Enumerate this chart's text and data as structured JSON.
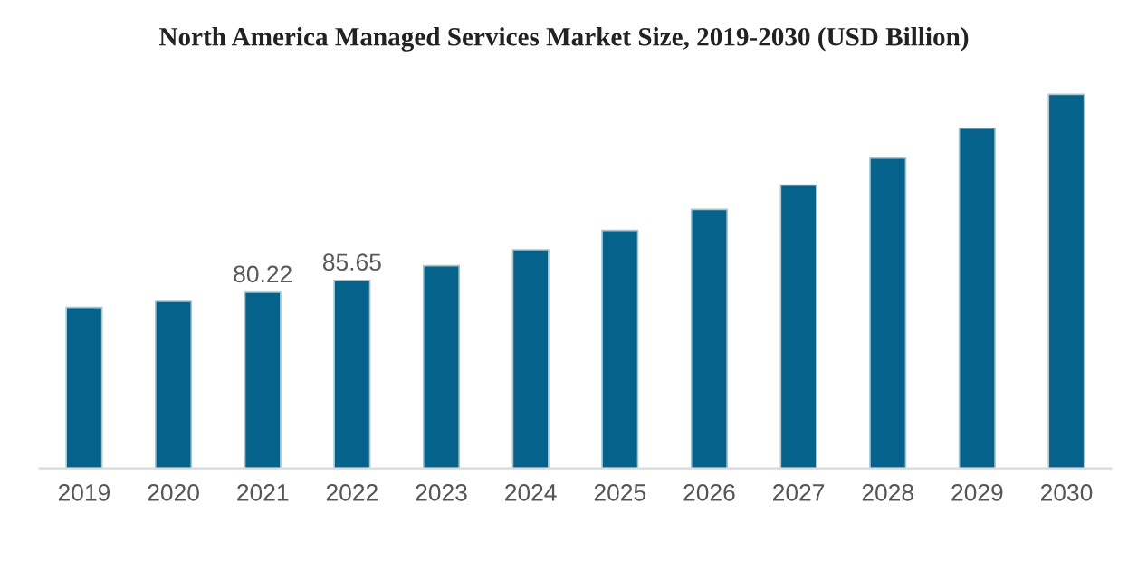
{
  "chart_data": {
    "type": "bar",
    "title": "North America Managed Services Market Size, 2019-2030 (USD Billion)",
    "categories": [
      "2019",
      "2020",
      "2021",
      "2022",
      "2023",
      "2024",
      "2025",
      "2026",
      "2027",
      "2028",
      "2029",
      "2030"
    ],
    "values": [
      73.4,
      76.1,
      80.22,
      85.65,
      92.3,
      99.6,
      108.4,
      118.0,
      129.0,
      141.3,
      154.9,
      170.3
    ],
    "value_labels": [
      null,
      null,
      "80.22",
      "85.65",
      null,
      null,
      null,
      null,
      null,
      null,
      null,
      null
    ],
    "color": "#05628a",
    "grid": false,
    "legend": false
  }
}
